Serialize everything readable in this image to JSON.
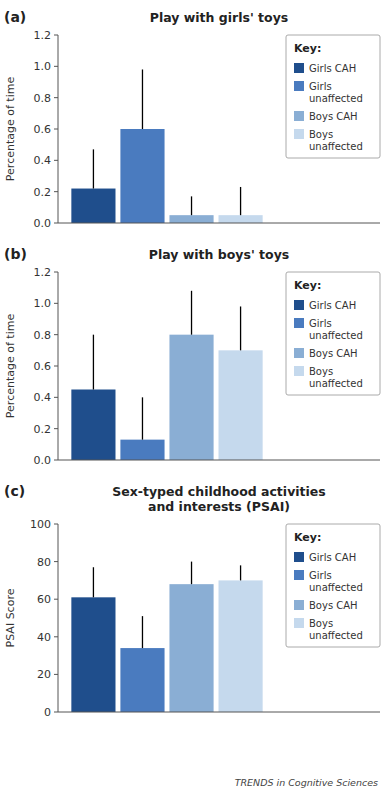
{
  "chart_data": [
    {
      "type": "bar",
      "title": "Play with girls' toys",
      "y_label": "Percentage of time",
      "annotations": [
        "(a)"
      ],
      "categories": [
        null
      ],
      "series": [
        {
          "name": "Girls CAH",
          "color": "#1f4e8c",
          "values": [
            0.22
          ],
          "errors_up": [
            0.25
          ]
        },
        {
          "name": "Girls\nunaffected",
          "color": "#4a7bbf",
          "values": [
            0.6
          ],
          "errors_up": [
            0.38
          ]
        },
        {
          "name": "Boys CAH",
          "color": "#8aaed4",
          "values": [
            0.05
          ],
          "errors_up": [
            0.12
          ]
        },
        {
          "name": "Boys\nunaffected",
          "color": "#c5d9ed",
          "values": [
            0.05
          ],
          "errors_up": [
            0.18
          ]
        }
      ],
      "ylim": [
        0,
        1.2
      ],
      "yticks": [
        {
          "value": 0,
          "label": "0.0"
        },
        0.2,
        0.4,
        0.6,
        0.8,
        {
          "value": 1,
          "label": "1.0"
        },
        1.2
      ],
      "grid": false,
      "legend": "upper right",
      "legend_title": "Key:",
      "tick_labels": "y"
    },
    {
      "type": "bar",
      "title": "Play with boys' toys",
      "y_label": "Percentage of time",
      "annotations": [
        "(b)"
      ],
      "categories": [
        null
      ],
      "series": [
        {
          "name": "Girls CAH",
          "color": "#1f4e8c",
          "values": [
            0.45
          ],
          "errors_up": [
            0.35
          ]
        },
        {
          "name": "Girls\nunaffected",
          "color": "#4a7bbf",
          "values": [
            0.13
          ],
          "errors_up": [
            0.27
          ]
        },
        {
          "name": "Boys CAH",
          "color": "#8aaed4",
          "values": [
            0.8
          ],
          "errors_up": [
            0.28
          ]
        },
        {
          "name": "Boys\nunaffected",
          "color": "#c5d9ed",
          "values": [
            0.7
          ],
          "errors_up": [
            0.28
          ]
        }
      ],
      "ylim": [
        0,
        1.2
      ],
      "yticks": [
        {
          "value": 0,
          "label": "0.0"
        },
        0.2,
        0.4,
        0.6,
        0.8,
        {
          "value": 1,
          "label": "1.0"
        },
        1.2
      ],
      "grid": false,
      "legend": "upper right",
      "legend_title": "Key:",
      "tick_labels": "y"
    },
    {
      "type": "bar",
      "title": "Sex-typed childhood activities\nand interests (PSAI)",
      "y_label": "PSAI Score",
      "annotations": [
        "(c)",
        "TRENDS in Cognitive Sciences"
      ],
      "categories": [
        null
      ],
      "series": [
        {
          "name": "Girls CAH",
          "color": "#1f4e8c",
          "values": [
            61
          ],
          "errors_up": [
            16
          ]
        },
        {
          "name": "Girls\nunaffected",
          "color": "#4a7bbf",
          "values": [
            34
          ],
          "errors_up": [
            17
          ]
        },
        {
          "name": "Boys CAH",
          "color": "#8aaed4",
          "values": [
            68
          ],
          "errors_up": [
            12
          ]
        },
        {
          "name": "Boys\nunaffected",
          "color": "#c5d9ed",
          "values": [
            70
          ],
          "errors_up": [
            8
          ]
        }
      ],
      "ylim": [
        0,
        100
      ],
      "yticks": [
        0,
        20,
        40,
        60,
        80,
        100
      ],
      "grid": false,
      "legend": "upper right",
      "legend_title": "Key:",
      "tick_labels": "y"
    }
  ]
}
